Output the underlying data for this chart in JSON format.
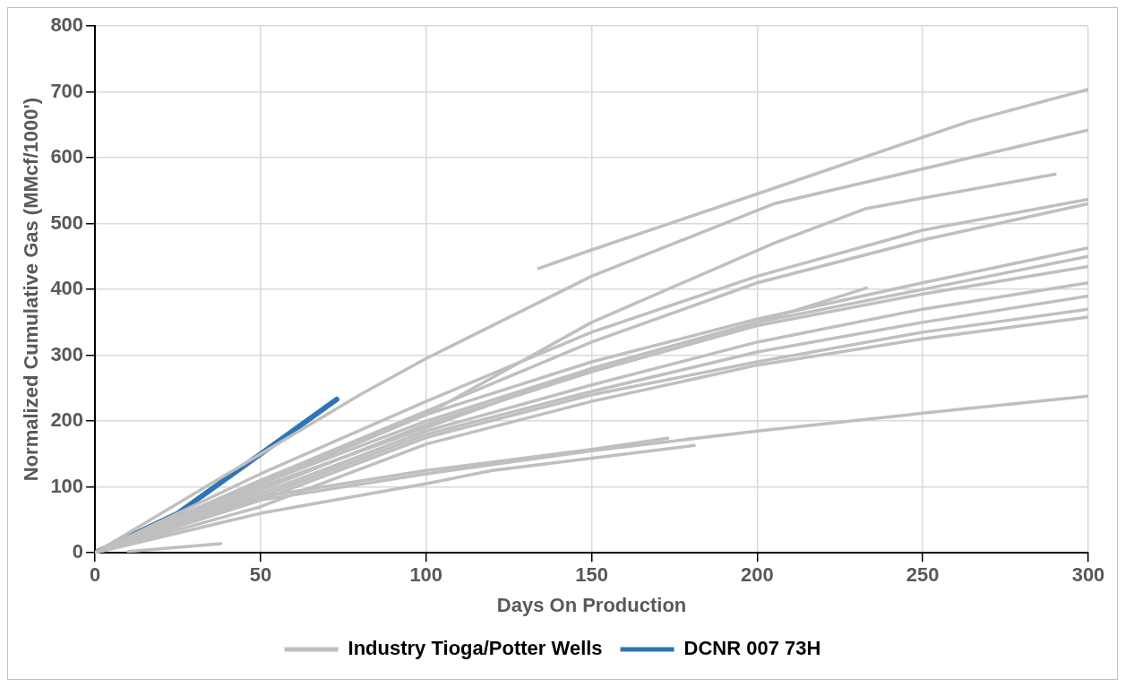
{
  "chart_data": {
    "type": "line",
    "xlabel": "Days On Production",
    "ylabel": "Normalized Cumulative Gas (MMcf/1000')",
    "xlim": [
      0,
      300
    ],
    "ylim": [
      0,
      800
    ],
    "xticks": [
      0,
      50,
      100,
      150,
      200,
      250,
      300
    ],
    "yticks": [
      0,
      100,
      200,
      300,
      400,
      500,
      600,
      700,
      800
    ],
    "grid": true,
    "legend": "bottom",
    "marker": "none",
    "line_style": "solid",
    "series": [
      {
        "name": "Industry Tioga/Potter Wells",
        "color": "#bfbfbf",
        "x": [
          134,
          150,
          200,
          264,
          300
        ],
        "values": [
          432,
          460,
          545,
          655,
          704
        ]
      },
      {
        "color": "#bfbfbf",
        "x": [
          0,
          80,
          100,
          150,
          205,
          300
        ],
        "values": [
          0,
          240,
          295,
          420,
          530,
          642
        ]
      },
      {
        "color": "#bfbfbf",
        "x": [
          0,
          50,
          100,
          150,
          205,
          233,
          290
        ],
        "values": [
          0,
          105,
          210,
          350,
          470,
          523,
          575
        ]
      },
      {
        "color": "#bfbfbf",
        "x": [
          0,
          50,
          100,
          150,
          200,
          250,
          300
        ],
        "values": [
          0,
          120,
          230,
          335,
          420,
          490,
          537
        ]
      },
      {
        "color": "#bfbfbf",
        "x": [
          0,
          50,
          100,
          150,
          200,
          250,
          300
        ],
        "values": [
          0,
          110,
          215,
          320,
          410,
          475,
          530
        ]
      },
      {
        "color": "#bfbfbf",
        "x": [
          0,
          50,
          100,
          150,
          200,
          233
        ],
        "values": [
          0,
          100,
          190,
          280,
          350,
          402
        ]
      },
      {
        "color": "#bfbfbf",
        "x": [
          0,
          50,
          100,
          150,
          200,
          250,
          300
        ],
        "values": [
          0,
          110,
          210,
          290,
          355,
          410,
          463
        ]
      },
      {
        "color": "#bfbfbf",
        "x": [
          0,
          50,
          100,
          150,
          200,
          250,
          300
        ],
        "values": [
          0,
          105,
          200,
          280,
          350,
          400,
          450
        ]
      },
      {
        "color": "#bfbfbf",
        "x": [
          0,
          50,
          100,
          150,
          200,
          250,
          300
        ],
        "values": [
          0,
          95,
          195,
          275,
          345,
          393,
          435
        ]
      },
      {
        "color": "#bfbfbf",
        "x": [
          0,
          50,
          100,
          150,
          200,
          250,
          300
        ],
        "values": [
          0,
          90,
          185,
          255,
          320,
          370,
          410
        ]
      },
      {
        "color": "#bfbfbf",
        "x": [
          0,
          50,
          100,
          150,
          200,
          250,
          300
        ],
        "values": [
          0,
          85,
          180,
          245,
          305,
          350,
          390
        ]
      },
      {
        "color": "#bfbfbf",
        "x": [
          0,
          50,
          100,
          150,
          200,
          250,
          300
        ],
        "values": [
          0,
          80,
          175,
          240,
          290,
          335,
          370
        ]
      },
      {
        "color": "#bfbfbf",
        "x": [
          0,
          50,
          100,
          150,
          200,
          250,
          300
        ],
        "values": [
          0,
          70,
          165,
          230,
          285,
          325,
          358
        ]
      },
      {
        "color": "#bfbfbf",
        "x": [
          0,
          50,
          100,
          150,
          200,
          250,
          300
        ],
        "values": [
          0,
          80,
          120,
          155,
          185,
          212,
          238
        ]
      },
      {
        "color": "#bfbfbf",
        "x": [
          0,
          50,
          100,
          150,
          173
        ],
        "values": [
          0,
          85,
          125,
          157,
          174
        ]
      },
      {
        "color": "#bfbfbf",
        "x": [
          0,
          50,
          100,
          120,
          181
        ],
        "values": [
          0,
          60,
          105,
          125,
          163
        ]
      },
      {
        "color": "#bfbfbf",
        "x": [
          10,
          38
        ],
        "values": [
          2,
          14
        ]
      },
      {
        "name": "DCNR 007 73H",
        "color": "#2e75b6",
        "x": [
          0,
          25,
          50,
          73
        ],
        "values": [
          0,
          60,
          150,
          233
        ]
      }
    ]
  }
}
